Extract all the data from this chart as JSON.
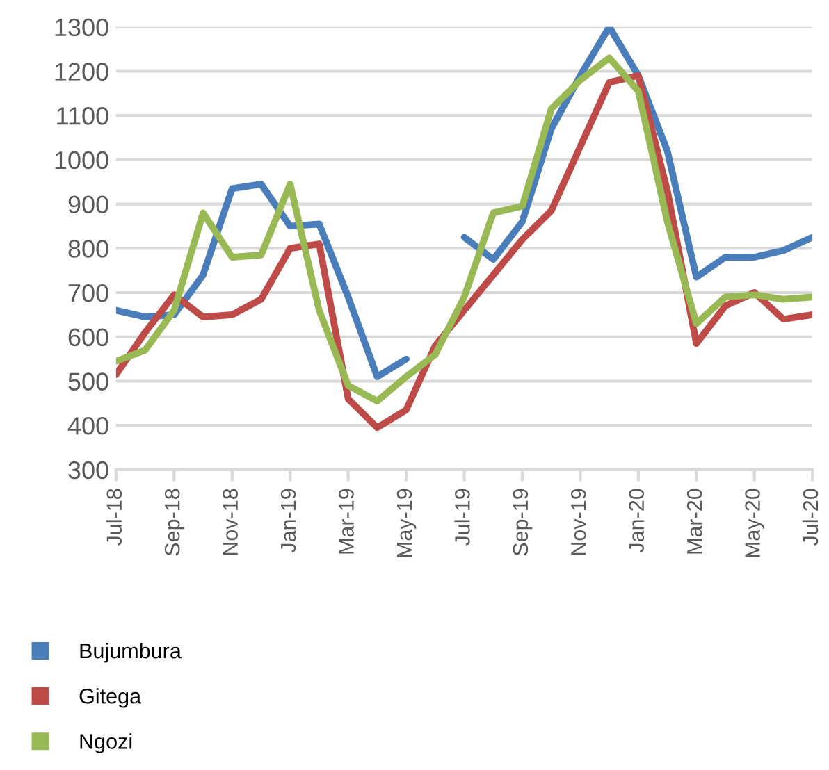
{
  "chart_data": {
    "type": "line",
    "categories": [
      "Jul-18",
      null,
      "Sep-18",
      null,
      "Nov-18",
      null,
      "Jan-19",
      null,
      "Mar-19",
      null,
      "May-19",
      null,
      "Jul-19",
      null,
      "Sep-19",
      null,
      "Nov-19",
      null,
      "Jan-20",
      null,
      "Mar-20",
      null,
      "May-20",
      null,
      "Jul-20"
    ],
    "series": [
      {
        "name": "Bujumbura",
        "color": "#4a7ebb",
        "values": [
          660,
          645,
          650,
          740,
          935,
          945,
          850,
          855,
          690,
          510,
          550,
          null,
          825,
          775,
          860,
          1070,
          1190,
          1300,
          1190,
          1020,
          735,
          780,
          780,
          795,
          825
        ]
      },
      {
        "name": "Gitega",
        "color": "#be4b48",
        "values": [
          515,
          610,
          695,
          645,
          650,
          685,
          800,
          810,
          460,
          395,
          435,
          580,
          660,
          740,
          820,
          885,
          1030,
          1175,
          1190,
          930,
          585,
          670,
          700,
          640,
          650
        ]
      },
      {
        "name": "Ngozi",
        "color": "#98b954",
        "values": [
          545,
          570,
          660,
          880,
          780,
          785,
          945,
          660,
          490,
          455,
          510,
          560,
          690,
          880,
          895,
          1115,
          1180,
          1230,
          1155,
          860,
          630,
          690,
          695,
          685,
          690
        ]
      }
    ],
    "ylim": [
      300,
      1300
    ],
    "yticks": [
      300,
      400,
      500,
      600,
      700,
      800,
      900,
      1000,
      1100,
      1200,
      1300
    ],
    "grid": "y",
    "legend": "bottom",
    "marker": "none",
    "line_style": "solid"
  }
}
